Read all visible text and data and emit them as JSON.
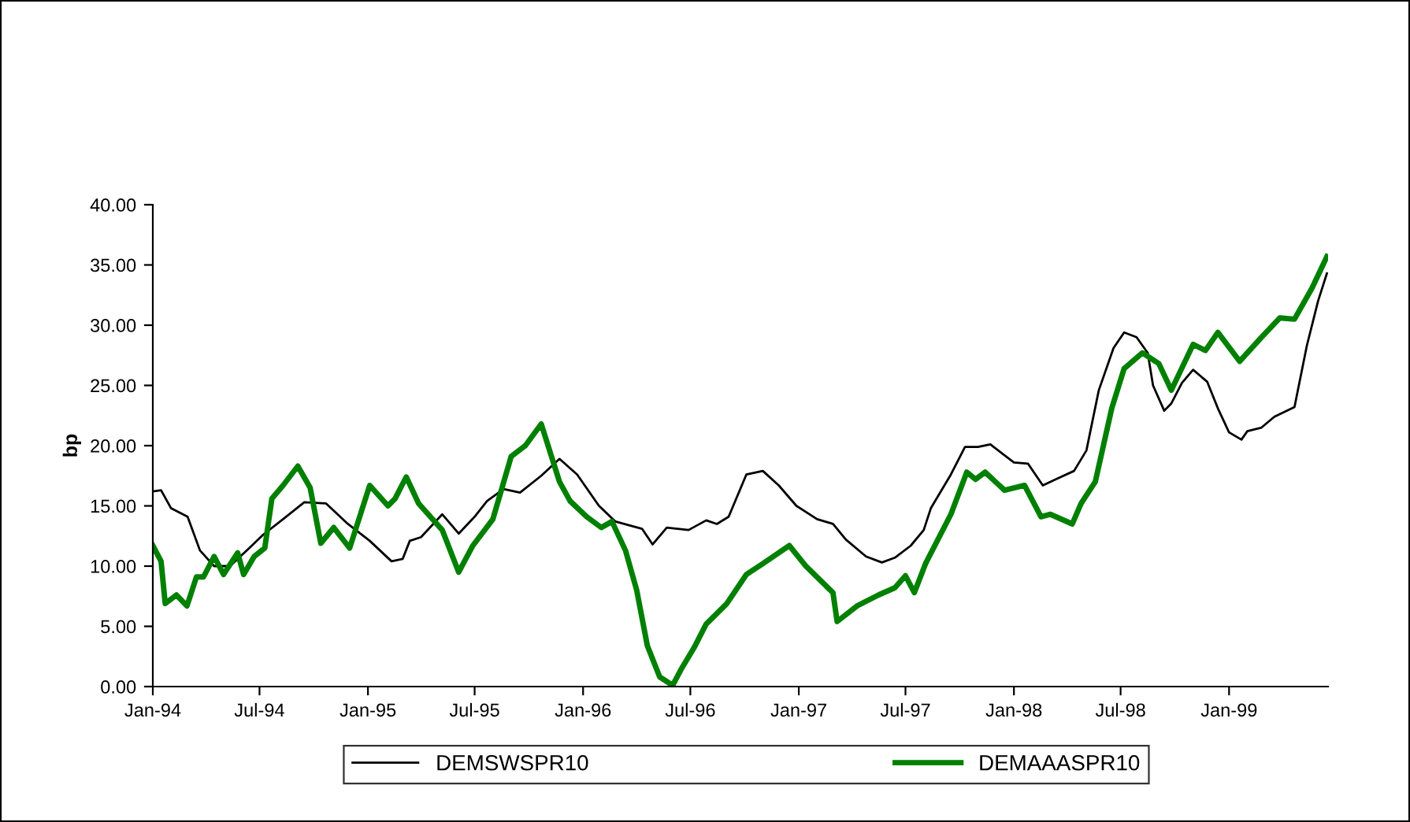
{
  "chart_data": {
    "type": "line",
    "ylabel": "bp",
    "legend": "bottom",
    "grid": false,
    "marker": "none",
    "line_style": "solid",
    "xlim": [
      "1994-01-01",
      "1999-06-18"
    ],
    "ylim": [
      0,
      40
    ],
    "yticks": [
      {
        "value": 0,
        "label": "0.00"
      },
      {
        "value": 5,
        "label": "5.00"
      },
      {
        "value": 10,
        "label": "10.00"
      },
      {
        "value": 15,
        "label": "15.00"
      },
      {
        "value": 20,
        "label": "20.00"
      },
      {
        "value": 25,
        "label": "25.00"
      },
      {
        "value": 30,
        "label": "30.00"
      },
      {
        "value": 35,
        "label": "35.00"
      },
      {
        "value": 40,
        "label": "40.00"
      }
    ],
    "xticks": [
      {
        "value": "1994-01-01",
        "label": "Jan-94"
      },
      {
        "value": "1994-07-01",
        "label": "Jul-94"
      },
      {
        "value": "1995-01-01",
        "label": "Jan-95"
      },
      {
        "value": "1995-07-01",
        "label": "Jul-95"
      },
      {
        "value": "1996-01-01",
        "label": "Jan-96"
      },
      {
        "value": "1996-07-01",
        "label": "Jul-96"
      },
      {
        "value": "1997-01-01",
        "label": "Jan-97"
      },
      {
        "value": "1997-07-01",
        "label": "Jul-97"
      },
      {
        "value": "1998-01-01",
        "label": "Jan-98"
      },
      {
        "value": "1998-07-01",
        "label": "Jul-98"
      },
      {
        "value": "1999-01-01",
        "label": "Jan-99"
      }
    ],
    "series": [
      {
        "name": "DEMSWSPR10",
        "color": "#000000",
        "x": [
          "1994-01-01",
          "1994-01-15",
          "1994-02-01",
          "1994-03-01",
          "1994-03-22",
          "1994-04-15",
          "1994-05-12",
          "1994-06-18",
          "1994-07-07",
          "1994-08-10",
          "1994-09-15",
          "1994-10-22",
          "1994-11-28",
          "1995-01-04",
          "1995-02-10",
          "1995-03-01",
          "1995-03-13",
          "1995-04-01",
          "1995-05-07",
          "1995-06-04",
          "1995-07-01",
          "1995-07-22",
          "1995-08-19",
          "1995-09-16",
          "1995-10-22",
          "1995-11-22",
          "1995-12-22",
          "1996-01-28",
          "1996-02-25",
          "1996-04-10",
          "1996-04-28",
          "1996-05-22",
          "1996-06-28",
          "1996-07-28",
          "1996-08-15",
          "1996-09-04",
          "1996-10-04",
          "1996-11-01",
          "1996-11-28",
          "1996-12-28",
          "1997-02-01",
          "1997-02-28",
          "1997-03-22",
          "1997-04-25",
          "1997-05-22",
          "1997-06-13",
          "1997-07-10",
          "1997-08-01",
          "1997-08-13",
          "1997-09-16",
          "1997-10-10",
          "1997-11-01",
          "1997-11-22",
          "1998-01-01",
          "1998-01-25",
          "1998-02-19",
          "1998-03-13",
          "1998-04-13",
          "1998-05-04",
          "1998-05-25",
          "1998-06-19",
          "1998-07-07",
          "1998-07-28",
          "1998-08-16",
          "1998-08-25",
          "1998-09-13",
          "1998-09-25",
          "1998-10-13",
          "1998-11-01",
          "1998-11-25",
          "1998-12-13",
          "1999-01-01",
          "1999-01-22",
          "1999-02-01",
          "1999-02-25",
          "1999-03-19",
          "1999-04-22",
          "1999-05-13",
          "1999-06-01",
          "1999-06-16"
        ],
        "values": [
          16.2,
          16.3,
          14.8,
          14.1,
          11.3,
          10.0,
          10.0,
          11.7,
          12.6,
          13.9,
          15.3,
          15.2,
          13.5,
          12.1,
          10.4,
          10.6,
          12.1,
          12.4,
          14.3,
          12.7,
          14.1,
          15.4,
          16.4,
          16.1,
          17.5,
          18.9,
          17.6,
          15.0,
          13.7,
          13.1,
          11.8,
          13.2,
          13.0,
          13.8,
          13.5,
          14.1,
          17.6,
          17.9,
          16.7,
          15.0,
          13.9,
          13.5,
          12.2,
          10.8,
          10.3,
          10.7,
          11.7,
          13.0,
          14.8,
          17.6,
          19.9,
          19.9,
          20.1,
          18.6,
          18.5,
          16.7,
          17.2,
          17.9,
          19.6,
          24.6,
          28.1,
          29.4,
          29.0,
          27.7,
          25.0,
          22.9,
          23.5,
          25.2,
          26.3,
          25.3,
          23.1,
          21.1,
          20.5,
          21.2,
          21.5,
          22.4,
          23.2,
          28.3,
          32.0,
          34.3
        ]
      },
      {
        "name": "DEMAAASPR10",
        "color": "#008000",
        "x": [
          "1994-01-01",
          "1994-01-15",
          "1994-01-22",
          "1994-02-10",
          "1994-02-28",
          "1994-03-16",
          "1994-03-28",
          "1994-04-15",
          "1994-05-01",
          "1994-05-25",
          "1994-06-04",
          "1994-06-22",
          "1994-07-10",
          "1994-07-22",
          "1994-08-10",
          "1994-09-04",
          "1994-09-25",
          "1994-10-13",
          "1994-11-04",
          "1994-12-01",
          "1995-01-04",
          "1995-02-04",
          "1995-02-16",
          "1995-03-07",
          "1995-03-28",
          "1995-05-07",
          "1995-06-04",
          "1995-06-28",
          "1995-08-01",
          "1995-09-01",
          "1995-09-25",
          "1995-10-22",
          "1995-11-22",
          "1995-12-10",
          "1996-01-07",
          "1996-02-01",
          "1996-02-19",
          "1996-03-13",
          "1996-04-01",
          "1996-04-19",
          "1996-05-10",
          "1996-06-01",
          "1996-06-15",
          "1996-07-07",
          "1996-07-28",
          "1996-09-01",
          "1996-10-04",
          "1996-11-01",
          "1996-12-16",
          "1997-01-13",
          "1997-02-28",
          "1997-03-07",
          "1997-04-10",
          "1997-05-16",
          "1997-06-13",
          "1997-07-01",
          "1997-07-16",
          "1997-08-04",
          "1997-09-16",
          "1997-10-13",
          "1997-10-28",
          "1997-11-13",
          "1997-12-16",
          "1998-01-19",
          "1998-02-16",
          "1998-03-04",
          "1998-04-10",
          "1998-04-25",
          "1998-05-19",
          "1998-06-16",
          "1998-07-07",
          "1998-08-07",
          "1998-09-04",
          "1998-09-25",
          "1998-11-01",
          "1998-11-22",
          "1998-12-13",
          "1999-01-19",
          "1999-02-25",
          "1999-03-28",
          "1999-04-22",
          "1999-05-22",
          "1999-06-16"
        ],
        "values": [
          11.7,
          10.4,
          6.9,
          7.6,
          6.7,
          9.1,
          9.1,
          10.8,
          9.3,
          11.1,
          9.3,
          10.8,
          11.5,
          15.6,
          16.7,
          18.3,
          16.5,
          11.9,
          13.2,
          11.5,
          16.7,
          15.0,
          15.6,
          17.4,
          15.2,
          13.0,
          9.5,
          11.7,
          13.9,
          19.1,
          20.0,
          21.8,
          17.0,
          15.4,
          14.1,
          13.2,
          13.7,
          11.3,
          8.0,
          3.4,
          0.8,
          0.1,
          1.4,
          3.2,
          5.2,
          6.9,
          9.3,
          10.2,
          11.7,
          10.0,
          7.8,
          5.4,
          6.7,
          7.6,
          8.2,
          9.2,
          7.8,
          10.2,
          14.3,
          17.8,
          17.2,
          17.8,
          16.3,
          16.7,
          14.1,
          14.3,
          13.5,
          15.2,
          17.0,
          23.1,
          26.4,
          27.7,
          26.8,
          24.6,
          28.4,
          27.9,
          29.4,
          27.0,
          29.0,
          30.6,
          30.5,
          33.1,
          35.7
        ]
      }
    ]
  }
}
